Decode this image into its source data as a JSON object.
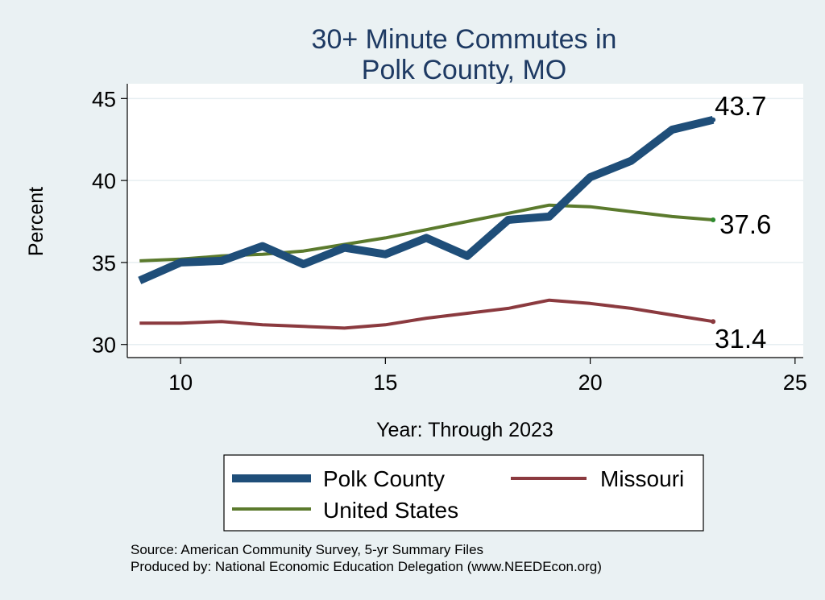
{
  "chart_data": {
    "type": "line",
    "title": [
      "30+ Minute Commutes in",
      "Polk County, MO"
    ],
    "xlabel": "Year: Through 2023",
    "ylabel": "Percent",
    "xlim": [
      8.7,
      25.2
    ],
    "ylim": [
      29.2,
      45.9
    ],
    "xticks": [
      10,
      15,
      20,
      25
    ],
    "yticks": [
      30,
      35,
      40,
      45
    ],
    "grid": true,
    "x": [
      9,
      10,
      11,
      12,
      13,
      14,
      15,
      16,
      17,
      18,
      19,
      20,
      21,
      22,
      23
    ],
    "series": [
      {
        "name": "Polk County",
        "color": "#1f4e79",
        "values": [
          33.9,
          35.0,
          35.1,
          36.0,
          34.9,
          35.9,
          35.5,
          36.5,
          35.4,
          37.6,
          37.8,
          40.2,
          41.2,
          43.1,
          43.7
        ],
        "end_label": "43.7"
      },
      {
        "name": "United States",
        "color": "#5b7a2d",
        "values": [
          35.1,
          35.2,
          35.4,
          35.5,
          35.7,
          36.1,
          36.5,
          37.0,
          37.5,
          38.0,
          38.5,
          38.4,
          38.1,
          37.8,
          37.6
        ],
        "end_label": "37.6"
      },
      {
        "name": "Missouri",
        "color": "#8b3a3f",
        "values": [
          31.3,
          31.3,
          31.4,
          31.2,
          31.1,
          31.0,
          31.2,
          31.6,
          31.9,
          32.2,
          32.7,
          32.5,
          32.2,
          31.8,
          31.4
        ],
        "end_label": "31.4"
      }
    ],
    "legend": {
      "placement": "bottom",
      "entries": [
        "Polk County",
        "Missouri",
        "United States"
      ]
    }
  },
  "source": {
    "line1": "Source: American Community Survey, 5-yr Summary Files",
    "line2": "Produced by: National Economic Education Delegation (www.NEEDEcon.org)"
  }
}
